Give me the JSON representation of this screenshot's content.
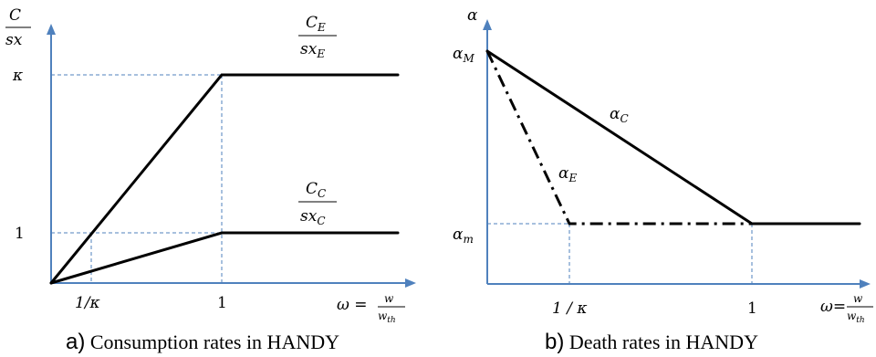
{
  "panel_a": {
    "caption_letter": "a)",
    "caption_text": " Consumption rates in HANDY",
    "y_axis_num": "C",
    "y_axis_den": "sx",
    "tick_kappa": "κ",
    "tick_one_y": "1",
    "tick_inv_kappa": "1/κ",
    "tick_one_x": "1",
    "x_axis_omega": "ω =",
    "x_axis_num": "w",
    "x_axis_den_main": "w",
    "x_axis_den_sub": "th",
    "elite_num_main": "C",
    "elite_num_sub": "E",
    "elite_den_main": "sx",
    "elite_den_sub": "E",
    "commoner_num_main": "C",
    "commoner_num_sub": "C",
    "commoner_den_main": "sx",
    "commoner_den_sub": "C"
  },
  "panel_b": {
    "caption_letter": "b)",
    "caption_text": " Death rates in HANDY",
    "y_axis": "α",
    "tick_alpha_M_main": "α",
    "tick_alpha_M_sub": "M",
    "tick_alpha_m_main": "α",
    "tick_alpha_m_sub": "m",
    "tick_inv_kappa": "1 / κ",
    "tick_one_x": "1",
    "x_axis_omega": "ω=",
    "x_axis_num": "w",
    "x_axis_den_main": "w",
    "x_axis_den_sub": "th",
    "alpha_C_main": "α",
    "alpha_C_sub": "C",
    "alpha_E_main": "α",
    "alpha_E_sub": "E"
  },
  "colors": {
    "axis": "#4f81bd",
    "curve": "#000000"
  }
}
